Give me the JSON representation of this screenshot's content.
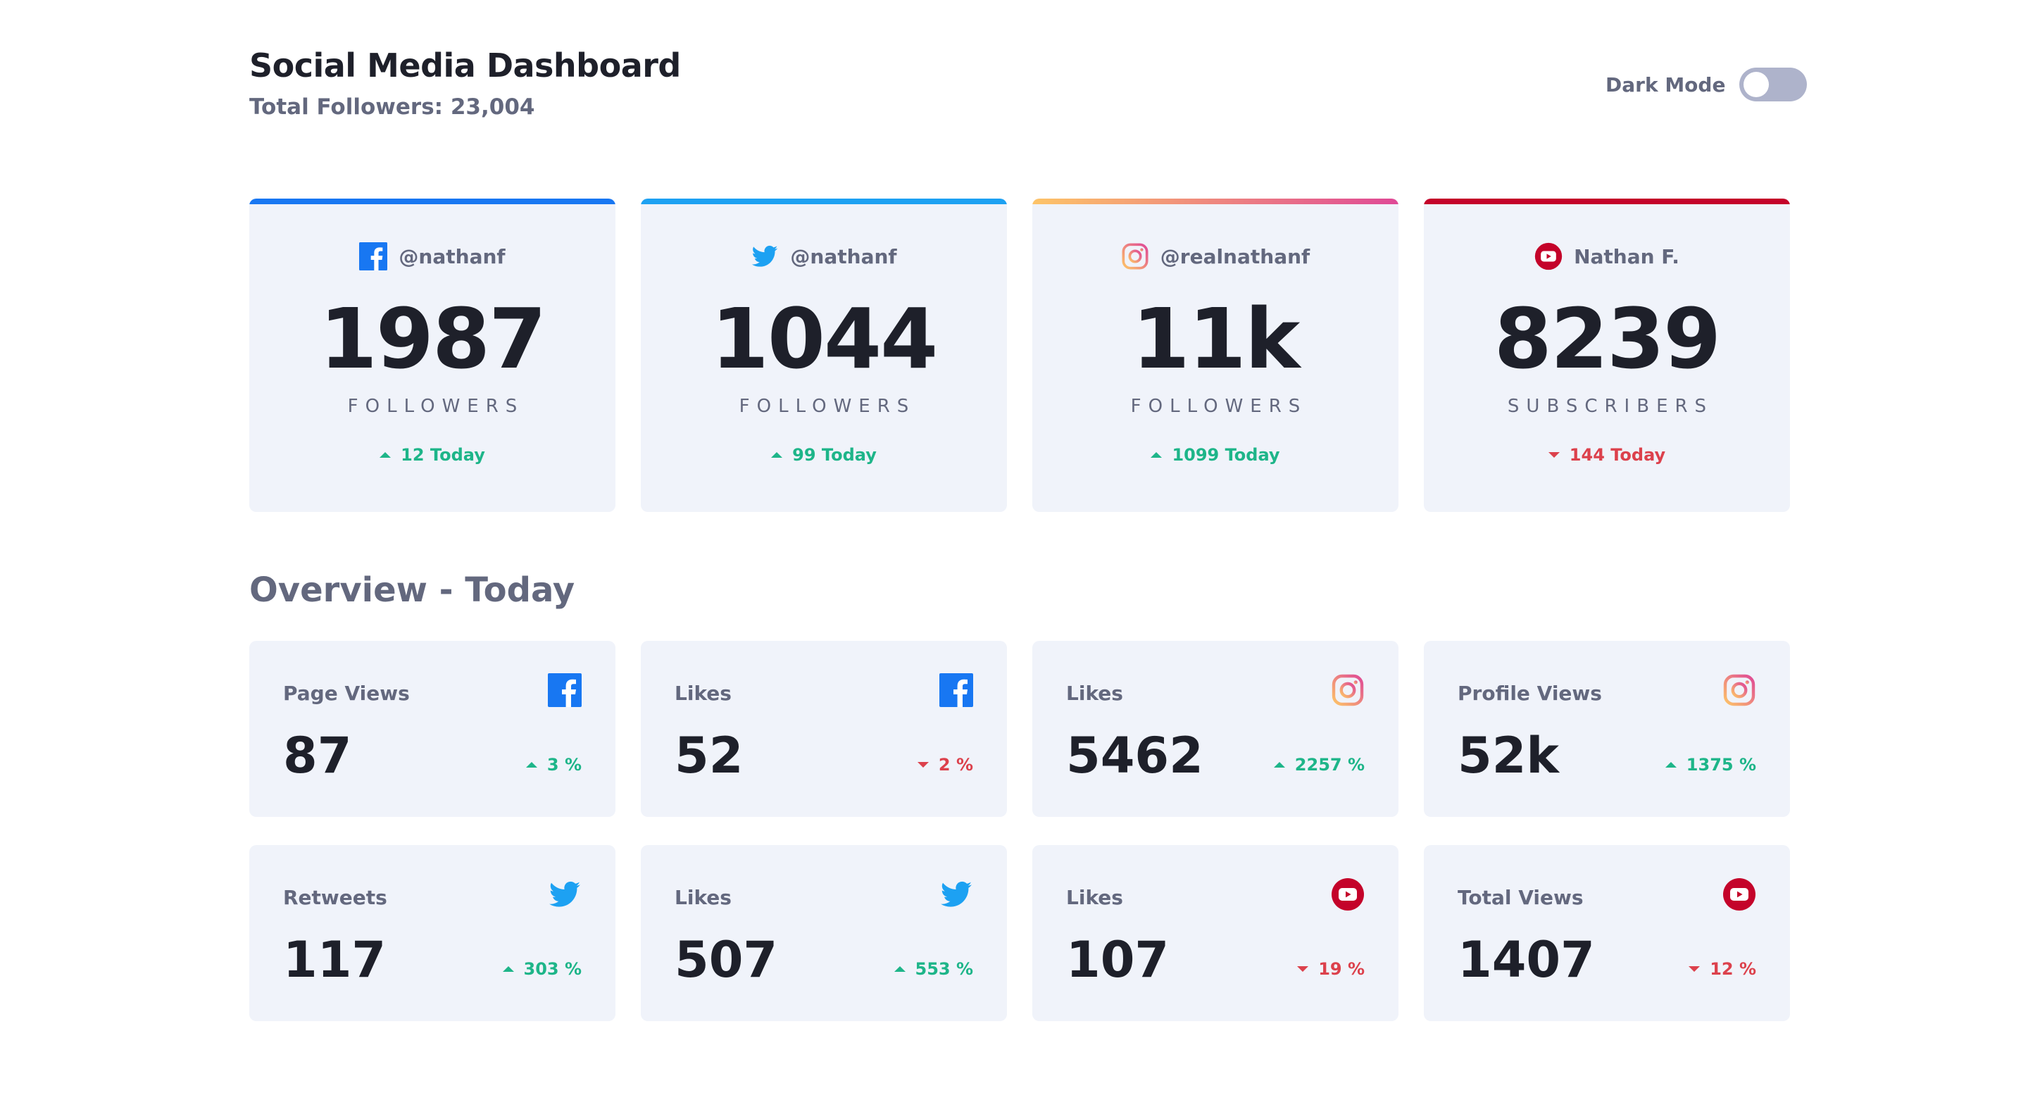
{
  "header": {
    "title": "Social Media Dashboard",
    "total_followers": "Total Followers: 23,004",
    "dark_mode_label": "Dark Mode",
    "dark_mode_on": false
  },
  "colors": {
    "facebook": "#1877f2",
    "twitter": "#1da1f2",
    "instagram_gradient": [
      "#fdc468",
      "#df4996"
    ],
    "youtube": "#c4032a",
    "up": "#1eb589",
    "down": "#dc414c"
  },
  "followers": [
    {
      "platform": "facebook",
      "icon": "facebook-icon",
      "handle": "@nathanf",
      "count": "1987",
      "unit": "FOLLOWERS",
      "today": "12 Today",
      "trend": "up"
    },
    {
      "platform": "twitter",
      "icon": "twitter-icon",
      "handle": "@nathanf",
      "count": "1044",
      "unit": "FOLLOWERS",
      "today": "99 Today",
      "trend": "up"
    },
    {
      "platform": "instagram",
      "icon": "instagram-icon",
      "handle": "@realnathanf",
      "count": "11k",
      "unit": "FOLLOWERS",
      "today": "1099 Today",
      "trend": "up"
    },
    {
      "platform": "youtube",
      "icon": "youtube-icon",
      "handle": "Nathan F.",
      "count": "8239",
      "unit": "SUBSCRIBERS",
      "today": "144 Today",
      "trend": "down"
    }
  ],
  "overview": {
    "title": "Overview - Today",
    "items": [
      {
        "label": "Page Views",
        "platform": "facebook",
        "icon": "facebook-icon",
        "value": "87",
        "change": "3 %",
        "trend": "up"
      },
      {
        "label": "Likes",
        "platform": "facebook",
        "icon": "facebook-icon",
        "value": "52",
        "change": "2 %",
        "trend": "down"
      },
      {
        "label": "Likes",
        "platform": "instagram",
        "icon": "instagram-icon",
        "value": "5462",
        "change": "2257 %",
        "trend": "up"
      },
      {
        "label": "Profile Views",
        "platform": "instagram",
        "icon": "instagram-icon",
        "value": "52k",
        "change": "1375 %",
        "trend": "up"
      },
      {
        "label": "Retweets",
        "platform": "twitter",
        "icon": "twitter-icon",
        "value": "117",
        "change": "303 %",
        "trend": "up"
      },
      {
        "label": "Likes",
        "platform": "twitter",
        "icon": "twitter-icon",
        "value": "507",
        "change": "553 %",
        "trend": "up"
      },
      {
        "label": "Likes",
        "platform": "youtube",
        "icon": "youtube-icon",
        "value": "107",
        "change": "19 %",
        "trend": "down"
      },
      {
        "label": "Total Views",
        "platform": "youtube",
        "icon": "youtube-icon",
        "value": "1407",
        "change": "12 %",
        "trend": "down"
      }
    ]
  }
}
